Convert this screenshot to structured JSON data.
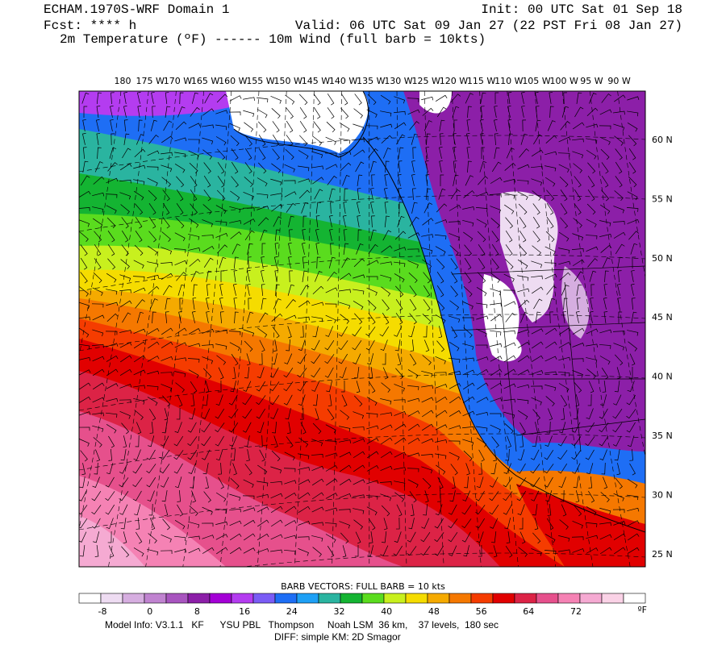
{
  "header": {
    "left": [
      "ECHAM.1970S-WRF Domain 1",
      "Fcst: **** h",
      "2m Temperature (ºF) ------ 10m Wind (full barb = 10kts)"
    ],
    "right": [
      "Init: 00 UTC Sat 01 Sep 18",
      "Valid: 06 UTC Sat 09 Jan 27 (22 PST Fri 08 Jan 27)"
    ]
  },
  "map": {
    "longitudes": [
      "180",
      "175 W",
      "170 W",
      "165 W",
      "160 W",
      "155 W",
      "150 W",
      "145 W",
      "140 W",
      "135 W",
      "130 W",
      "125 W",
      "120 W",
      "115 W",
      "110 W",
      "105 W",
      "100 W",
      "95 W",
      "90 W"
    ],
    "latitudes": [
      "60 N",
      "55 N",
      "50 N",
      "45 N",
      "40 N",
      "35 N",
      "30 N",
      "25 N"
    ]
  },
  "colorbar": {
    "title": "BARB VECTORS:  FULL BARB = 10 kts",
    "colors": [
      "#ffffff",
      "#eedcf2",
      "#d6aee0",
      "#c083d0",
      "#a855bf",
      "#8c1fa8",
      "#a400d6",
      "#b43cf0",
      "#7a5cf5",
      "#1e6ef5",
      "#1ea0f5",
      "#2ab4a0",
      "#14b432",
      "#5adc1e",
      "#c8f01e",
      "#f5dc00",
      "#f5aa00",
      "#f57800",
      "#f53c00",
      "#e10000",
      "#dc2346",
      "#e6508c",
      "#f582b4",
      "#f5aad2",
      "#fad2e6",
      "#ffffff"
    ],
    "labels": [
      "-8",
      "0",
      "8",
      "16",
      "24",
      "32",
      "40",
      "48",
      "56",
      "64",
      "72"
    ],
    "unit": "ºF"
  },
  "footer": [
    "Model Info: V3.1.1   KF      YSU PBL   Thompson     Noah LSM  36 km,    37 levels,  180 sec",
    "DIFF: simple KM: 2D Smagor"
  ]
}
